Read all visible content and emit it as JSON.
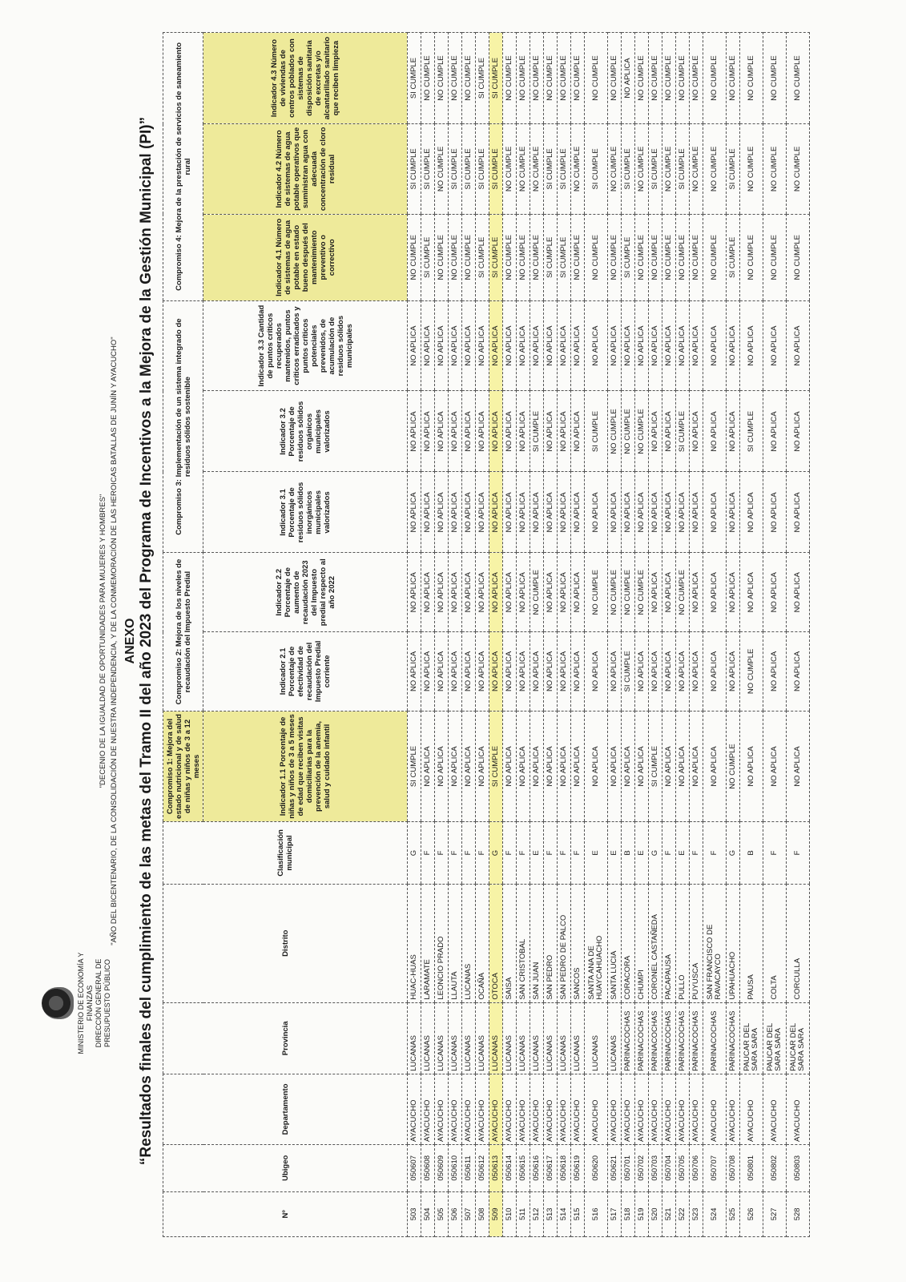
{
  "header": {
    "ministry_line1": "MINISTERIO DE ECONOMÍA Y FINANZAS",
    "ministry_line2": "DIRECCIÓN GENERAL DE PRESUPUESTO PÚBLICO",
    "slogan1": "\"DECENIO DE LA IGUALDAD DE OPORTUNIDADES PARA MUJERES Y HOMBRES\"",
    "slogan2": "\"AÑO DEL BICENTENARIO, DE LA CONSOLIDACIÓN DE NUESTRA INDEPENDENCIA, Y DE LA CONMEMORACIÓN DE LAS HEROICAS BATALLAS DE JUNÍN Y AYACUCHO\"",
    "anexo": "ANEXO",
    "title": "“Resultados finales del cumplimiento de las metas del Tramo II del año 2023 del Programa de Incentivos a la Mejora de la Gestión Municipal (PI)”"
  },
  "table": {
    "col_no": "Nº",
    "col_ubigeo": "Ubigeo",
    "col_departamento": "Departamento",
    "col_provincia": "Provincia",
    "col_distrito": "Distrito",
    "col_clasificacion": "Clasificación municipal",
    "compromiso1": "Compromiso 1: Mejora del estado nutricional y de salud de niñas y niños de 3 a 12 meses",
    "compromiso2": "Compromiso 2: Mejora de los niveles de recaudación del Impuesto Predial",
    "compromiso3": "Compromiso 3: Implementación de un sistema integrado de residuos sólidos sostenible",
    "compromiso4": "Compromiso 4: Mejora de la prestación de servicios de saneamiento rural",
    "ind11": "Indicador 1.1 Porcentaje de niñas y niños de 3 a 5 meses de edad que reciben visitas domiciliarias para la prevención de la anemia, salud y cuidado infantil",
    "ind21": "Indicador 2.1 Porcentaje de efectividad de recaudación del Impuesto Predial corriente",
    "ind22": "Indicador 2.2 Porcentaje de aumento de recaudación 2023 del Impuesto predial respecto al año 2022",
    "ind31": "Indicador 3.1 Porcentaje de residuos sólidos inorgánicos municipales valorizados",
    "ind32": "Indicador 3.2 Porcentaje de residuos sólidos orgánicos municipales valorizados",
    "ind33": "Indicador 3.3 Cantidad de puntos críticos recuperados mantenidos, puntos críticos erradicados y puntos críticos potenciales prevenidos, de acumulación de residuos sólidos municipales",
    "ind41": "Indicador 4.1 Número de sistemas de agua potable en estado bueno después del mantenimiento preventivo o correctivo",
    "ind42": "Indicador 4.2 Número de sistemas de agua potable operativos que suministran agua con adecuada concentración de cloro residual",
    "ind43": "Indicador 4.3 Número de viviendas de centros poblados con sistemas de disposición sanitaria de excretas y/o alcantarillado sanitario que reciben limpieza",
    "rows": [
      [
        "503",
        "050607",
        "AYACUCHO",
        "LUCANAS",
        "HUAC-HUAS",
        "G",
        "SI CUMPLE",
        "NO APLICA",
        "NO APLICA",
        "NO APLICA",
        "NO APLICA",
        "NO APLICA",
        "NO CUMPLE",
        "SI CUMPLE",
        "SI CUMPLE"
      ],
      [
        "504",
        "050608",
        "AYACUCHO",
        "LUCANAS",
        "LARAMATE",
        "F",
        "NO APLICA",
        "NO APLICA",
        "NO APLICA",
        "NO APLICA",
        "NO APLICA",
        "NO APLICA",
        "SI CUMPLE",
        "SI CUMPLE",
        "NO CUMPLE"
      ],
      [
        "505",
        "050609",
        "AYACUCHO",
        "LUCANAS",
        "LEONCIO PRADO",
        "F",
        "NO APLICA",
        "NO APLICA",
        "NO APLICA",
        "NO APLICA",
        "NO APLICA",
        "NO APLICA",
        "NO CUMPLE",
        "NO CUMPLE",
        "NO CUMPLE"
      ],
      [
        "506",
        "050610",
        "AYACUCHO",
        "LUCANAS",
        "LLAUTA",
        "F",
        "NO APLICA",
        "NO APLICA",
        "NO APLICA",
        "NO APLICA",
        "NO APLICA",
        "NO APLICA",
        "NO CUMPLE",
        "SI CUMPLE",
        "NO CUMPLE"
      ],
      [
        "507",
        "050611",
        "AYACUCHO",
        "LUCANAS",
        "LUCANAS",
        "F",
        "NO APLICA",
        "NO APLICA",
        "NO APLICA",
        "NO APLICA",
        "NO APLICA",
        "NO APLICA",
        "NO CUMPLE",
        "SI CUMPLE",
        "NO CUMPLE"
      ],
      [
        "508",
        "050612",
        "AYACUCHO",
        "LUCANAS",
        "OCAÑA",
        "F",
        "NO APLICA",
        "NO APLICA",
        "NO APLICA",
        "NO APLICA",
        "NO APLICA",
        "NO APLICA",
        "SI CUMPLE",
        "SI CUMPLE",
        "SI CUMPLE"
      ],
      [
        "509",
        "050613",
        "AYACUCHO",
        "LUCANAS",
        "OTOCA",
        "G",
        "SI CUMPLE",
        "NO APLICA",
        "NO APLICA",
        "NO APLICA",
        "NO APLICA",
        "NO APLICA",
        "SI CUMPLE",
        "SI CUMPLE",
        "SI CUMPLE"
      ],
      [
        "510",
        "050614",
        "AYACUCHO",
        "LUCANAS",
        "SAISA",
        "F",
        "NO APLICA",
        "NO APLICA",
        "NO APLICA",
        "NO APLICA",
        "NO APLICA",
        "NO APLICA",
        "NO CUMPLE",
        "NO CUMPLE",
        "NO CUMPLE"
      ],
      [
        "511",
        "050615",
        "AYACUCHO",
        "LUCANAS",
        "SAN CRISTOBAL",
        "F",
        "NO APLICA",
        "NO APLICA",
        "NO APLICA",
        "NO APLICA",
        "NO APLICA",
        "NO APLICA",
        "NO CUMPLE",
        "NO CUMPLE",
        "NO CUMPLE"
      ],
      [
        "512",
        "050616",
        "AYACUCHO",
        "LUCANAS",
        "SAN JUAN",
        "E",
        "NO APLICA",
        "NO APLICA",
        "NO CUMPLE",
        "NO APLICA",
        "SI CUMPLE",
        "NO APLICA",
        "NO CUMPLE",
        "NO CUMPLE",
        "NO CUMPLE"
      ],
      [
        "513",
        "050617",
        "AYACUCHO",
        "LUCANAS",
        "SAN PEDRO",
        "F",
        "NO APLICA",
        "NO APLICA",
        "NO APLICA",
        "NO APLICA",
        "NO APLICA",
        "NO APLICA",
        "SI CUMPLE",
        "SI CUMPLE",
        "NO CUMPLE"
      ],
      [
        "514",
        "050618",
        "AYACUCHO",
        "LUCANAS",
        "SAN PEDRO DE PALCO",
        "F",
        "NO APLICA",
        "NO APLICA",
        "NO APLICA",
        "NO APLICA",
        "NO APLICA",
        "NO APLICA",
        "SI CUMPLE",
        "SI CUMPLE",
        "NO CUMPLE"
      ],
      [
        "515",
        "050619",
        "AYACUCHO",
        "LUCANAS",
        "SANCOS",
        "F",
        "NO APLICA",
        "NO APLICA",
        "NO APLICA",
        "NO APLICA",
        "NO APLICA",
        "NO APLICA",
        "NO CUMPLE",
        "NO CUMPLE",
        "NO CUMPLE"
      ],
      [
        "516",
        "050620",
        "AYACUCHO",
        "LUCANAS",
        "SANTA ANA DE HUAYCAHUACHO",
        "E",
        "NO APLICA",
        "NO APLICA",
        "NO CUMPLE",
        "NO APLICA",
        "SI CUMPLE",
        "NO APLICA",
        "NO CUMPLE",
        "SI CUMPLE",
        "NO CUMPLE"
      ],
      [
        "517",
        "050621",
        "AYACUCHO",
        "LUCANAS",
        "SANTA LUCIA",
        "E",
        "NO APLICA",
        "NO APLICA",
        "NO CUMPLE",
        "NO APLICA",
        "NO CUMPLE",
        "NO APLICA",
        "NO CUMPLE",
        "NO CUMPLE",
        "NO CUMPLE"
      ],
      [
        "518",
        "050701",
        "AYACUCHO",
        "PARINACOCHAS",
        "CORACORA",
        "B",
        "NO APLICA",
        "SI CUMPLE",
        "NO CUMPLE",
        "NO APLICA",
        "NO CUMPLE",
        "NO APLICA",
        "SI CUMPLE",
        "SI CUMPLE",
        "NO APLICA"
      ],
      [
        "519",
        "050702",
        "AYACUCHO",
        "PARINACOCHAS",
        "CHUMPI",
        "E",
        "NO APLICA",
        "NO APLICA",
        "NO CUMPLE",
        "NO APLICA",
        "NO CUMPLE",
        "NO APLICA",
        "NO CUMPLE",
        "NO CUMPLE",
        "NO CUMPLE"
      ],
      [
        "520",
        "050703",
        "AYACUCHO",
        "PARINACOCHAS",
        "CORONEL CASTAÑEDA",
        "G",
        "SI CUMPLE",
        "NO APLICA",
        "NO APLICA",
        "NO APLICA",
        "NO APLICA",
        "NO APLICA",
        "NO CUMPLE",
        "SI CUMPLE",
        "NO CUMPLE"
      ],
      [
        "521",
        "050704",
        "AYACUCHO",
        "PARINACOCHAS",
        "PACAPAUSA",
        "F",
        "NO APLICA",
        "NO APLICA",
        "NO APLICA",
        "NO APLICA",
        "NO APLICA",
        "NO APLICA",
        "NO CUMPLE",
        "NO CUMPLE",
        "NO CUMPLE"
      ],
      [
        "522",
        "050705",
        "AYACUCHO",
        "PARINACOCHAS",
        "PULLO",
        "E",
        "NO APLICA",
        "NO APLICA",
        "NO CUMPLE",
        "NO APLICA",
        "SI CUMPLE",
        "NO APLICA",
        "NO CUMPLE",
        "SI CUMPLE",
        "NO CUMPLE"
      ],
      [
        "523",
        "050706",
        "AYACUCHO",
        "PARINACOCHAS",
        "PUYUSCA",
        "F",
        "NO APLICA",
        "NO APLICA",
        "NO APLICA",
        "NO APLICA",
        "NO APLICA",
        "NO APLICA",
        "NO CUMPLE",
        "NO CUMPLE",
        "NO CUMPLE"
      ],
      [
        "524",
        "050707",
        "AYACUCHO",
        "PARINACOCHAS",
        "SAN FRANCISCO DE RAVACAYCO",
        "F",
        "NO APLICA",
        "NO APLICA",
        "NO APLICA",
        "NO APLICA",
        "NO APLICA",
        "NO APLICA",
        "NO CUMPLE",
        "NO CUMPLE",
        "NO CUMPLE"
      ],
      [
        "525",
        "050708",
        "AYACUCHO",
        "PARINACOCHAS",
        "UPAHUACHO",
        "G",
        "NO CUMPLE",
        "NO APLICA",
        "NO APLICA",
        "NO APLICA",
        "NO APLICA",
        "NO APLICA",
        "SI CUMPLE",
        "SI CUMPLE",
        "NO CUMPLE"
      ],
      [
        "526",
        "050801",
        "AYACUCHO",
        "PAUCAR DEL SARA SARA",
        "PAUSA",
        "B",
        "NO APLICA",
        "NO CUMPLE",
        "NO APLICA",
        "NO APLICA",
        "SI CUMPLE",
        "NO APLICA",
        "NO CUMPLE",
        "NO CUMPLE",
        "NO CUMPLE"
      ],
      [
        "527",
        "050802",
        "AYACUCHO",
        "PAUCAR DEL SARA SARA",
        "COLTA",
        "F",
        "NO APLICA",
        "NO APLICA",
        "NO APLICA",
        "NO APLICA",
        "NO APLICA",
        "NO APLICA",
        "NO CUMPLE",
        "NO CUMPLE",
        "NO CUMPLE"
      ],
      [
        "528",
        "050803",
        "AYACUCHO",
        "PAUCAR DEL SARA SARA",
        "CORCULLA",
        "F",
        "NO APLICA",
        "NO APLICA",
        "NO APLICA",
        "NO APLICA",
        "NO APLICA",
        "NO APLICA",
        "NO CUMPLE",
        "NO CUMPLE",
        "NO CUMPLE"
      ]
    ]
  },
  "colors": {
    "highlight": "#f7f3a6",
    "border": "#555555"
  }
}
